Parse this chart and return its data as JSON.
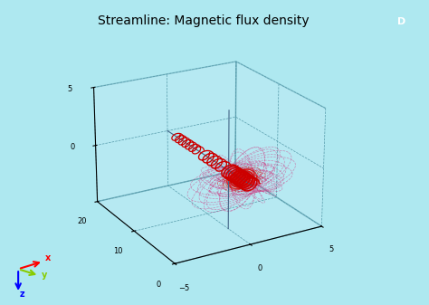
{
  "title": "Streamline: Magnetic flux density",
  "bg_color": "#aee8f0",
  "field_line_color_outer": "#cc4488",
  "field_line_color_inner": "#dd1111",
  "xlim": [
    -5,
    5
  ],
  "ylim": [
    0,
    20
  ],
  "zlim": [
    -5,
    5
  ],
  "xticks": [
    -5,
    0,
    5
  ],
  "yticks": [
    0,
    10,
    20
  ],
  "zticks": [
    0,
    5
  ],
  "title_fontsize": 10,
  "wire_color": "#446688",
  "solenoid_color": "#cc0000",
  "elev": 22,
  "azim": -120
}
